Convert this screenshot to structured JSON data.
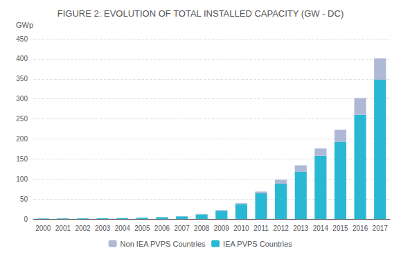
{
  "chart_data": {
    "type": "bar",
    "title": "FIGURE 2: EVOLUTION OF TOTAL INSTALLED CAPACITY (GW - DC)",
    "stacked": true,
    "categories": [
      "2000",
      "2001",
      "2002",
      "2003",
      "2004",
      "2005",
      "2006",
      "2007",
      "2008",
      "2009",
      "2010",
      "2011",
      "2012",
      "2013",
      "2014",
      "2015",
      "2016",
      "2017"
    ],
    "series": [
      {
        "name": "IEA PVPS Countries",
        "color": "#29b8d4",
        "values": [
          1.3,
          1.4,
          1.5,
          1.8,
          2.2,
          3.2,
          4.6,
          6.5,
          11.5,
          20.5,
          37.0,
          64.0,
          88.0,
          118.0,
          158.0,
          193.0,
          260.0,
          348.0
        ]
      },
      {
        "name": "Non IEA PVPS Countries",
        "color": "#b0b8d8",
        "values": [
          0.0,
          0.0,
          0.0,
          0.0,
          0.2,
          0.2,
          0.4,
          0.5,
          1.0,
          1.5,
          2.5,
          4.5,
          10.0,
          16.0,
          18.0,
          30.0,
          42.0,
          53.0
        ]
      }
    ],
    "ylabel": "GWp",
    "ylim": [
      0,
      450
    ],
    "yticks": [
      0,
      50,
      100,
      150,
      200,
      250,
      300,
      350,
      400,
      450
    ],
    "grid": true,
    "legend": "bottom"
  }
}
